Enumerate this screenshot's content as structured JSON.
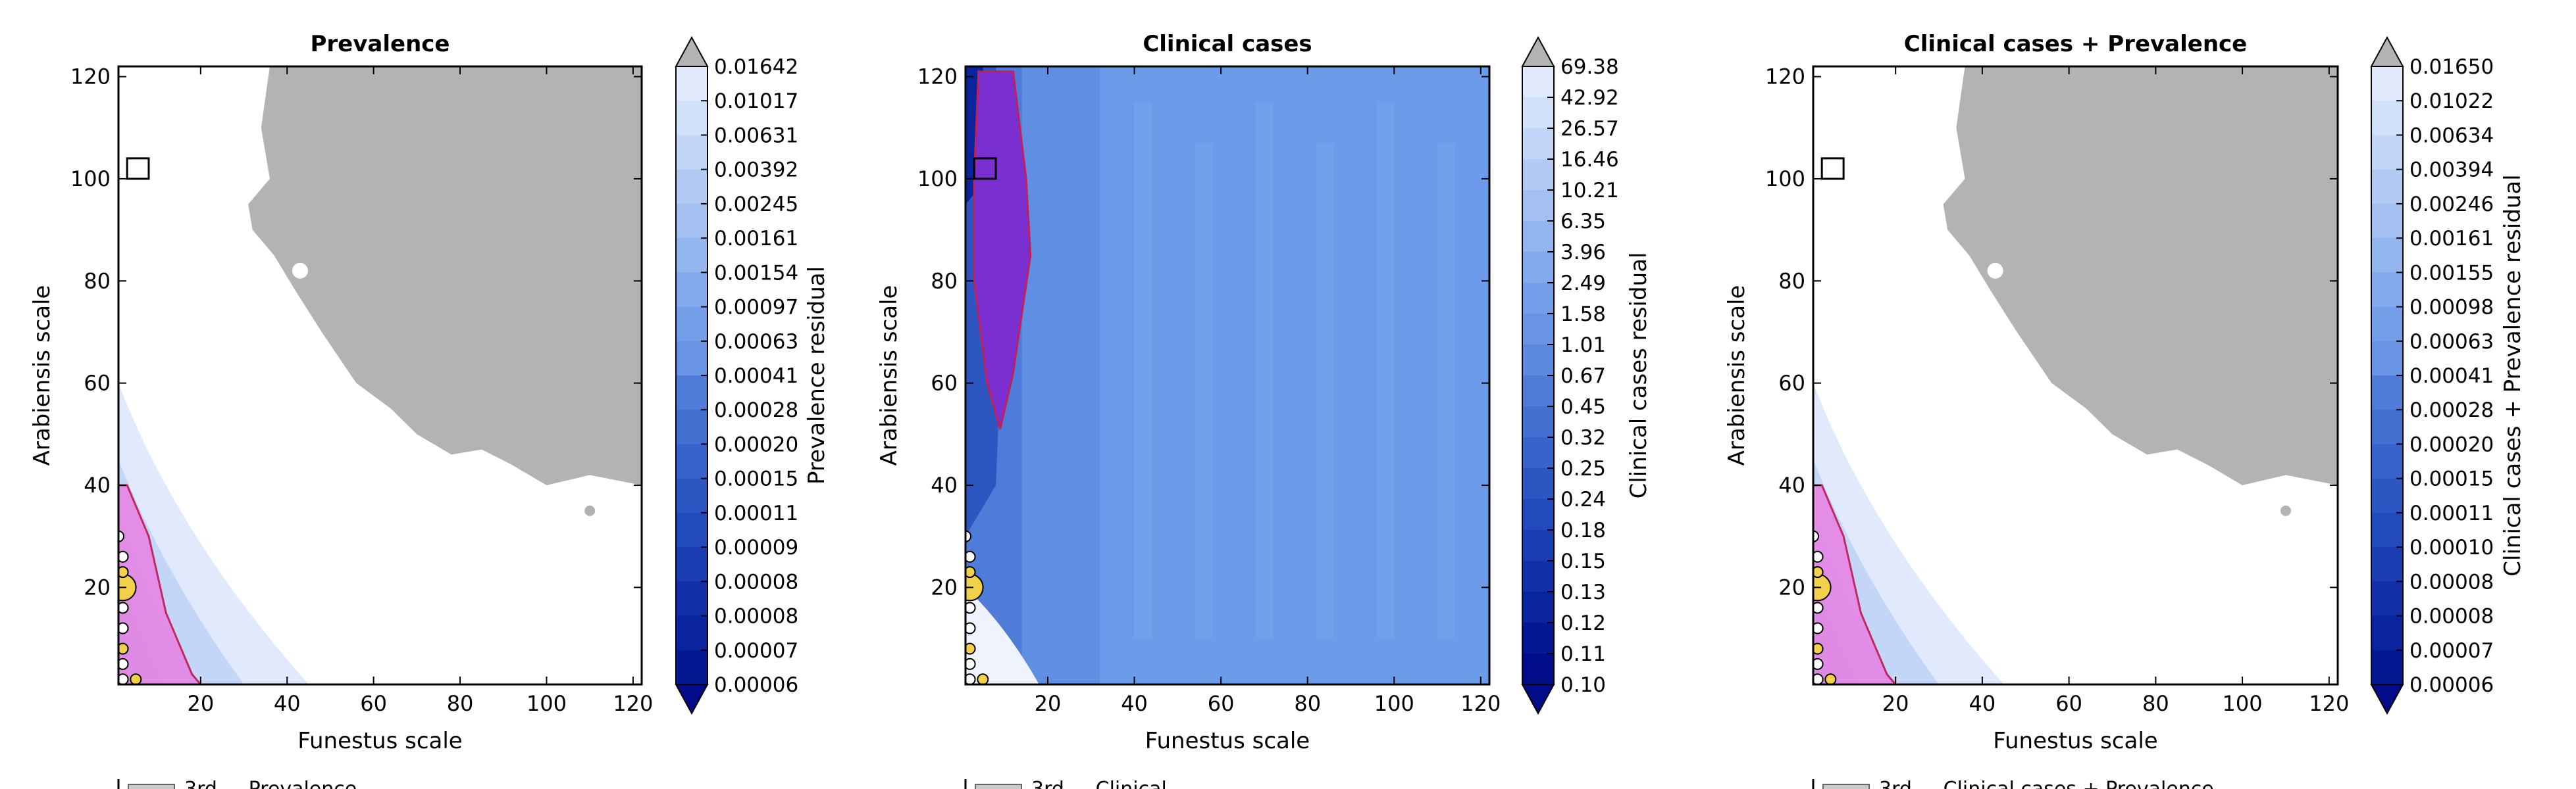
{
  "chart_data": [
    {
      "type": "heatmap",
      "title": "Prevalence",
      "xlabel": "Funestus scale",
      "ylabel": "Arabiensis scale",
      "xlim": [
        1,
        122
      ],
      "ylim": [
        1,
        122
      ],
      "xticks": [
        20,
        40,
        60,
        80,
        100,
        120
      ],
      "yticks": [
        20,
        40,
        60,
        80,
        100,
        120
      ],
      "colorbar": {
        "label": "Prevalence residual",
        "ticks": [
          "0.01642",
          "0.01017",
          "0.00631",
          "0.00392",
          "0.00245",
          "0.00161",
          "0.00154",
          "0.00097",
          "0.00063",
          "0.00041",
          "0.00028",
          "0.00020",
          "0.00015",
          "0.00011",
          "0.00009",
          "0.00008",
          "0.00008",
          "0.00007",
          "0.00006"
        ]
      },
      "colors": {
        "above_max": "#b3b3b3",
        "best_region": "#e68ae6",
        "best_region_edge": "#c0205a"
      },
      "bottom_legend_fragment": "3rd ... Prevalence"
    },
    {
      "type": "heatmap",
      "title": "Clinical cases",
      "xlabel": "Funestus scale",
      "ylabel": "Arabiensis scale",
      "xlim": [
        1,
        122
      ],
      "ylim": [
        1,
        122
      ],
      "xticks": [
        20,
        40,
        60,
        80,
        100,
        120
      ],
      "yticks": [
        20,
        40,
        60,
        80,
        100,
        120
      ],
      "colorbar": {
        "label": "Clinical cases residual",
        "ticks": [
          "69.38",
          "42.92",
          "26.57",
          "16.46",
          "10.21",
          "6.35",
          "3.96",
          "2.49",
          "1.58",
          "1.01",
          "0.67",
          "0.45",
          "0.32",
          "0.25",
          "0.24",
          "0.18",
          "0.15",
          "0.13",
          "0.12",
          "0.11",
          "0.10"
        ]
      },
      "colors": {
        "above_max": "#b3b3b3",
        "best_region": "#7a2fd0",
        "best_region_edge": "#c0205a"
      },
      "bottom_legend_fragment": "3rd ... Clinical"
    },
    {
      "type": "heatmap",
      "title": "Clinical cases + Prevalence",
      "xlabel": "Funestus scale",
      "ylabel": "Arabiensis scale",
      "xlim": [
        1,
        122
      ],
      "ylim": [
        1,
        122
      ],
      "xticks": [
        20,
        40,
        60,
        80,
        100,
        120
      ],
      "yticks": [
        20,
        40,
        60,
        80,
        100,
        120
      ],
      "colorbar": {
        "label": "Clinical cases + Prevalence residual",
        "ticks": [
          "0.01650",
          "0.01022",
          "0.00634",
          "0.00394",
          "0.00246",
          "0.00161",
          "0.00155",
          "0.00098",
          "0.00063",
          "0.00041",
          "0.00028",
          "0.00020",
          "0.00015",
          "0.00011",
          "0.00010",
          "0.00008",
          "0.00008",
          "0.00007",
          "0.00006"
        ]
      },
      "colors": {
        "above_max": "#b3b3b3",
        "best_region": "#e68ae6",
        "best_region_edge": "#c0205a"
      },
      "bottom_legend_fragment": "3rd ... Clinical cases + Prevalence"
    }
  ]
}
